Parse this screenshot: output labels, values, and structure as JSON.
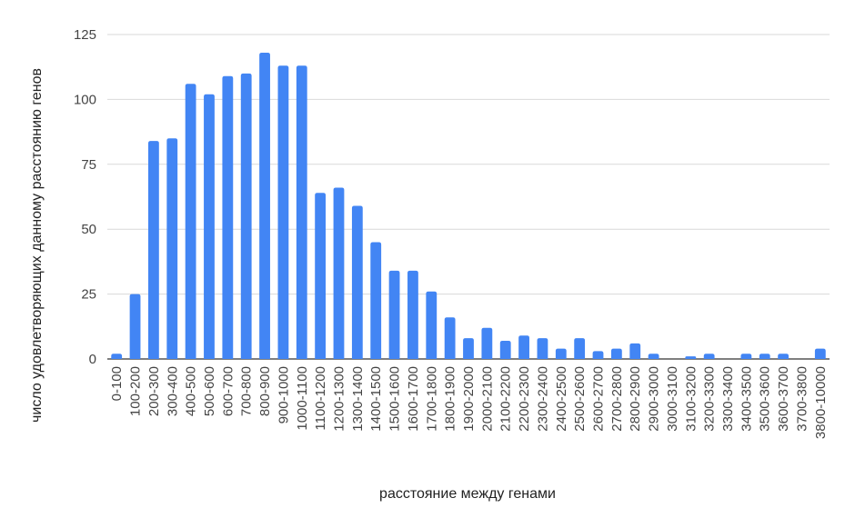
{
  "chart_data": {
    "type": "bar",
    "xlabel": "расстояние между генами",
    "ylabel": "число удовлетворяющих данному расстоянию генов",
    "ylim": [
      0,
      125
    ],
    "yticks": [
      0,
      25,
      50,
      75,
      100,
      125
    ],
    "grid": true,
    "bar_color": "#4285f4",
    "categories": [
      "0-100",
      "100-200",
      "200-300",
      "300-400",
      "400-500",
      "500-600",
      "600-700",
      "700-800",
      "800-900",
      "900-1000",
      "1000-1100",
      "1100-1200",
      "1200-1300",
      "1300-1400",
      "1400-1500",
      "1500-1600",
      "1600-1700",
      "1700-1800",
      "1800-1900",
      "1900-2000",
      "2000-2100",
      "2100-2200",
      "2200-2300",
      "2300-2400",
      "2400-2500",
      "2500-2600",
      "2600-2700",
      "2700-2800",
      "2800-2900",
      "2900-3000",
      "3000-3100",
      "3100-3200",
      "3200-3300",
      "3300-3400",
      "3400-3500",
      "3500-3600",
      "3600-3700",
      "3700-3800",
      "3800-10000"
    ],
    "values": [
      2,
      25,
      84,
      85,
      106,
      102,
      109,
      110,
      118,
      113,
      113,
      64,
      66,
      59,
      45,
      34,
      34,
      26,
      16,
      8,
      12,
      7,
      9,
      8,
      4,
      8,
      3,
      4,
      6,
      2,
      0,
      1,
      2,
      0,
      2,
      2,
      2,
      0,
      4
    ]
  }
}
